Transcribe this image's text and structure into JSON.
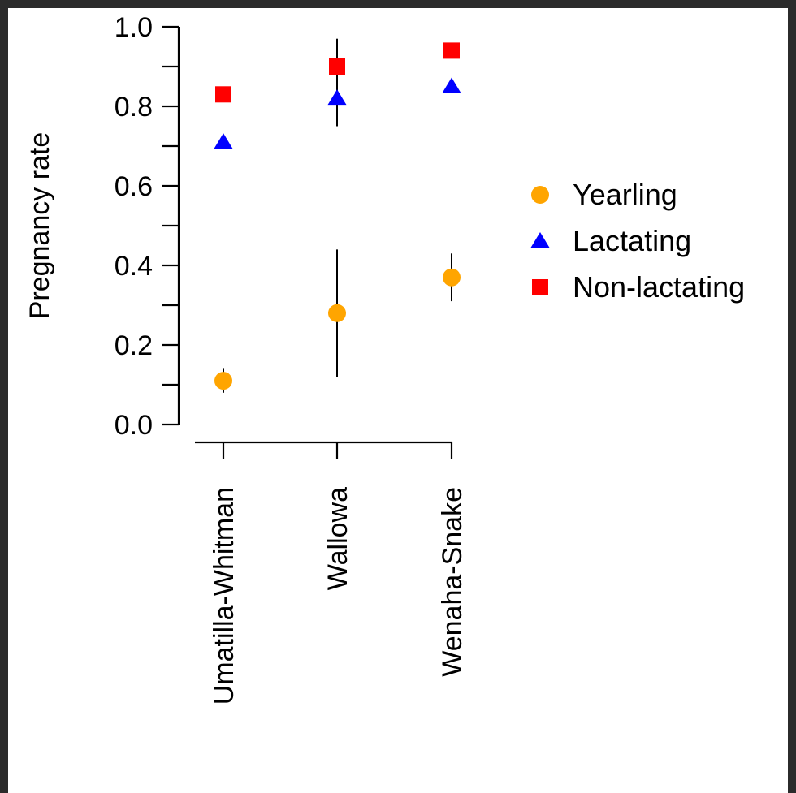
{
  "chart_data": {
    "type": "scatter",
    "title": "",
    "xlabel": "",
    "ylabel": "Pregnancy rate",
    "ylim": [
      0,
      1
    ],
    "yticks": [
      "0.0",
      "0.2",
      "0.4",
      "0.6",
      "0.8",
      "1.0"
    ],
    "categories": [
      "Umatilla-Whitman",
      "Wallowa",
      "Wenaha-Snake"
    ],
    "grid": false,
    "legend_position": "right",
    "series": [
      {
        "name": "Yearling",
        "marker": "circle",
        "color": "#FFA500",
        "values": [
          0.11,
          0.28,
          0.37
        ],
        "ci_low": [
          0.08,
          0.12,
          0.31
        ],
        "ci_high": [
          0.14,
          0.44,
          0.43
        ]
      },
      {
        "name": "Lactating",
        "marker": "triangle",
        "color": "#0000FF",
        "values": [
          0.71,
          0.82,
          0.85
        ],
        "ci_low": [
          null,
          0.75,
          null
        ],
        "ci_high": [
          null,
          0.97,
          null
        ]
      },
      {
        "name": "Non-lactating",
        "marker": "square",
        "color": "#FF0000",
        "values": [
          0.83,
          0.9,
          0.94
        ],
        "ci_low": [
          null,
          null,
          null
        ],
        "ci_high": [
          null,
          null,
          null
        ]
      }
    ]
  }
}
